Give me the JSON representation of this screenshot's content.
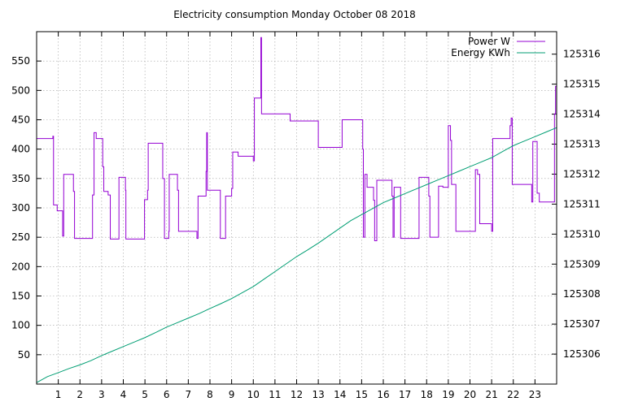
{
  "chart_data": {
    "type": "line",
    "title": "Electricity consumption Monday October 08 2018",
    "xlabel": "",
    "ylabel": "",
    "y2label": "",
    "xlim": [
      0,
      24
    ],
    "ylim": [
      0,
      600
    ],
    "y2lim": [
      125305.0,
      125316.75
    ],
    "grid": true,
    "legend_position": "top-right",
    "x_ticks": [
      1,
      2,
      3,
      4,
      5,
      6,
      7,
      8,
      9,
      10,
      11,
      12,
      13,
      14,
      15,
      16,
      17,
      18,
      19,
      20,
      21,
      22,
      23
    ],
    "y_ticks": [
      50,
      100,
      150,
      200,
      250,
      300,
      350,
      400,
      450,
      500,
      550
    ],
    "y2_ticks": [
      125306,
      125307,
      125308,
      125309,
      125310,
      125311,
      125312,
      125313,
      125314,
      125315,
      125316
    ],
    "series": [
      {
        "name": "Power W",
        "axis": "left",
        "color": "#9400d3",
        "step": true,
        "points": [
          [
            0,
            418
          ],
          [
            0.72,
            418
          ],
          [
            0.75,
            422
          ],
          [
            0.78,
            305
          ],
          [
            0.95,
            295
          ],
          [
            1.2,
            252
          ],
          [
            1.25,
            357
          ],
          [
            1.6,
            357
          ],
          [
            1.7,
            328
          ],
          [
            1.75,
            248
          ],
          [
            2.5,
            248
          ],
          [
            2.58,
            322
          ],
          [
            2.65,
            428
          ],
          [
            2.75,
            418
          ],
          [
            3.0,
            418
          ],
          [
            3.05,
            370
          ],
          [
            3.1,
            328
          ],
          [
            3.3,
            322
          ],
          [
            3.4,
            247
          ],
          [
            3.75,
            247
          ],
          [
            3.8,
            352
          ],
          [
            4.05,
            352
          ],
          [
            4.1,
            330
          ],
          [
            4.12,
            247
          ],
          [
            4.95,
            247
          ],
          [
            4.98,
            314
          ],
          [
            5.12,
            330
          ],
          [
            5.15,
            410
          ],
          [
            5.78,
            410
          ],
          [
            5.82,
            350
          ],
          [
            5.9,
            248
          ],
          [
            6.1,
            260
          ],
          [
            6.12,
            357
          ],
          [
            6.45,
            357
          ],
          [
            6.5,
            330
          ],
          [
            6.55,
            260
          ],
          [
            7.38,
            260
          ],
          [
            7.4,
            248
          ],
          [
            7.45,
            320
          ],
          [
            7.8,
            320
          ],
          [
            7.82,
            362
          ],
          [
            7.85,
            428
          ],
          [
            7.88,
            330
          ],
          [
            8.45,
            330
          ],
          [
            8.48,
            248
          ],
          [
            8.7,
            248
          ],
          [
            8.72,
            320
          ],
          [
            8.95,
            320
          ],
          [
            9.0,
            333
          ],
          [
            9.05,
            395
          ],
          [
            9.25,
            395
          ],
          [
            9.3,
            388
          ],
          [
            9.95,
            388
          ],
          [
            10.0,
            380
          ],
          [
            10.05,
            487
          ],
          [
            10.3,
            487
          ],
          [
            10.35,
            590
          ],
          [
            10.38,
            460
          ],
          [
            11.65,
            460
          ],
          [
            11.7,
            448
          ],
          [
            12.95,
            448
          ],
          [
            13.0,
            403
          ],
          [
            14.05,
            403
          ],
          [
            14.1,
            450
          ],
          [
            15.0,
            450
          ],
          [
            15.05,
            400
          ],
          [
            15.08,
            250
          ],
          [
            15.15,
            357
          ],
          [
            15.25,
            335
          ],
          [
            15.55,
            313
          ],
          [
            15.6,
            244
          ],
          [
            15.7,
            347
          ],
          [
            16.35,
            347
          ],
          [
            16.4,
            320
          ],
          [
            16.45,
            250
          ],
          [
            16.5,
            335
          ],
          [
            16.75,
            335
          ],
          [
            16.8,
            248
          ],
          [
            17.6,
            248
          ],
          [
            17.65,
            352
          ],
          [
            18.05,
            352
          ],
          [
            18.1,
            320
          ],
          [
            18.15,
            250
          ],
          [
            18.5,
            250
          ],
          [
            18.55,
            337
          ],
          [
            18.7,
            337
          ],
          [
            18.75,
            335
          ],
          [
            18.95,
            335
          ],
          [
            19.0,
            440
          ],
          [
            19.1,
            415
          ],
          [
            19.15,
            340
          ],
          [
            19.3,
            340
          ],
          [
            19.35,
            260
          ],
          [
            20.2,
            260
          ],
          [
            20.25,
            365
          ],
          [
            20.35,
            357
          ],
          [
            20.45,
            273
          ],
          [
            20.95,
            273
          ],
          [
            21.0,
            260
          ],
          [
            21.05,
            418
          ],
          [
            21.8,
            418
          ],
          [
            21.85,
            440
          ],
          [
            21.9,
            453
          ],
          [
            21.95,
            340
          ],
          [
            22.8,
            340
          ],
          [
            22.85,
            310
          ],
          [
            22.9,
            413
          ],
          [
            23.05,
            413
          ],
          [
            23.1,
            325
          ],
          [
            23.2,
            310
          ],
          [
            23.85,
            310
          ],
          [
            23.9,
            460
          ],
          [
            23.95,
            507
          ],
          [
            24,
            507
          ]
        ]
      },
      {
        "name": "Energy KWh",
        "axis": "right",
        "color": "#009e73",
        "step": false,
        "points": [
          [
            0,
            125305.05
          ],
          [
            0.5,
            125305.25
          ],
          [
            1,
            125305.38
          ],
          [
            1.5,
            125305.52
          ],
          [
            2,
            125305.64
          ],
          [
            2.5,
            125305.78
          ],
          [
            3,
            125305.95
          ],
          [
            3.5,
            125306.1
          ],
          [
            4,
            125306.25
          ],
          [
            4.5,
            125306.4
          ],
          [
            5,
            125306.55
          ],
          [
            5.5,
            125306.72
          ],
          [
            6,
            125306.9
          ],
          [
            6.5,
            125307.05
          ],
          [
            7,
            125307.2
          ],
          [
            7.5,
            125307.35
          ],
          [
            8,
            125307.52
          ],
          [
            8.5,
            125307.68
          ],
          [
            9,
            125307.85
          ],
          [
            9.5,
            125308.05
          ],
          [
            10,
            125308.25
          ],
          [
            10.5,
            125308.5
          ],
          [
            11,
            125308.75
          ],
          [
            11.5,
            125309.0
          ],
          [
            12,
            125309.25
          ],
          [
            12.5,
            125309.47
          ],
          [
            13,
            125309.7
          ],
          [
            13.5,
            125309.95
          ],
          [
            14,
            125310.2
          ],
          [
            14.5,
            125310.45
          ],
          [
            15,
            125310.65
          ],
          [
            15.5,
            125310.85
          ],
          [
            16,
            125311.05
          ],
          [
            16.5,
            125311.2
          ],
          [
            17,
            125311.35
          ],
          [
            17.5,
            125311.5
          ],
          [
            18,
            125311.65
          ],
          [
            18.5,
            125311.8
          ],
          [
            19,
            125311.95
          ],
          [
            19.5,
            125312.1
          ],
          [
            20,
            125312.25
          ],
          [
            20.5,
            125312.4
          ],
          [
            21,
            125312.55
          ],
          [
            21.5,
            125312.75
          ],
          [
            22,
            125312.95
          ],
          [
            22.5,
            125313.1
          ],
          [
            23,
            125313.25
          ],
          [
            23.5,
            125313.4
          ],
          [
            24,
            125313.55
          ]
        ]
      }
    ]
  }
}
